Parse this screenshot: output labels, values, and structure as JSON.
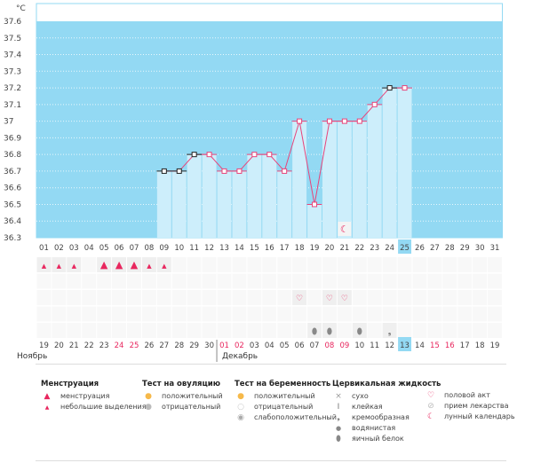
{
  "chart_data": {
    "type": "bar",
    "ylabel": "°C",
    "ylim": [
      36.3,
      37.7
    ],
    "yticks": [
      "37.6",
      "37.5",
      "37.4",
      "37.3",
      "37.2",
      "37.1",
      "37",
      "36.9",
      "36.8",
      "36.7",
      "36.6",
      "36.5",
      "36.4",
      "36.3"
    ],
    "cycle_days": [
      "01",
      "02",
      "03",
      "04",
      "05",
      "06",
      "07",
      "08",
      "09",
      "10",
      "11",
      "12",
      "13",
      "14",
      "15",
      "16",
      "17",
      "18",
      "19",
      "20",
      "21",
      "22",
      "23",
      "24",
      "25",
      "26",
      "27",
      "28",
      "29",
      "30",
      "31"
    ],
    "temperatures": [
      null,
      null,
      null,
      null,
      null,
      null,
      null,
      null,
      36.7,
      36.7,
      36.8,
      36.8,
      36.7,
      36.7,
      36.8,
      36.8,
      36.7,
      37.0,
      36.5,
      37.0,
      37.0,
      37.0,
      37.1,
      37.2,
      37.2,
      null,
      null,
      null,
      null,
      null,
      null
    ],
    "marker_black_days": [
      9,
      10,
      11,
      24
    ],
    "current_day": 25,
    "calendar_dates": [
      "19",
      "20",
      "21",
      "22",
      "23",
      "24",
      "25",
      "26",
      "27",
      "28",
      "29",
      "30",
      "01",
      "02",
      "03",
      "04",
      "05",
      "06",
      "07",
      "08",
      "09",
      "10",
      "11",
      "12",
      "13",
      "14",
      "15",
      "16",
      "17",
      "18",
      "19"
    ],
    "weekend_indices": [
      5,
      6,
      12,
      13,
      19,
      20,
      26,
      27
    ],
    "today_index": 24,
    "months": [
      "Ноябрь",
      "Декабрь"
    ],
    "menstruation": {
      "1": "small",
      "2": "small",
      "3": "small",
      "5": "big",
      "6": "big",
      "7": "big",
      "8": "small",
      "9": "small"
    },
    "intercourse_days": [
      18,
      20,
      21
    ],
    "fluid": {
      "19": "egg",
      "20": "egg",
      "22": "egg",
      "24": "creamy"
    },
    "moon_days": [
      21
    ],
    "colors": {
      "bg": "#93d9f3",
      "bar": "#cdeefb",
      "line": "#e8447a",
      "today": "#93d9f3"
    }
  },
  "legend": {
    "menstruation": {
      "title": "Менструация",
      "items": [
        "менструация",
        "небольшие выделения"
      ]
    },
    "ovulation": {
      "title": "Тест на овуляцию",
      "items": [
        "положительный",
        "отрицательный"
      ]
    },
    "pregnancy": {
      "title": "Тест на беременность",
      "items": [
        "положительный",
        "отрицательный",
        "слабоположительный"
      ]
    },
    "fluid": {
      "title": "Цервикальная жидкость",
      "items": [
        "сухо",
        "клейкая",
        "кремообразная",
        "водянистая",
        "яичный белок"
      ]
    },
    "other": {
      "items": [
        "половой акт",
        "прием лекарства",
        "лунный календарь"
      ]
    }
  }
}
